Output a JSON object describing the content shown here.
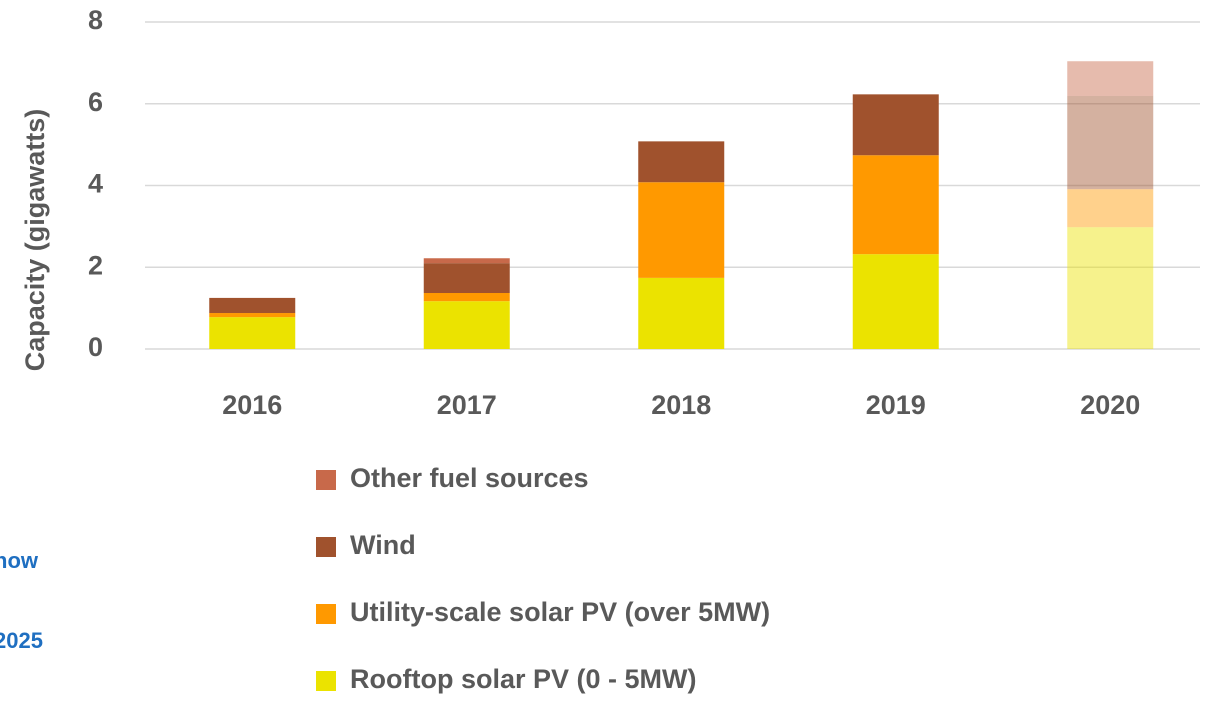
{
  "chart_data": {
    "type": "stacked_bar",
    "y_label": "Capacity (gigawatts)",
    "categories": [
      "2016",
      "2017",
      "2018",
      "2019",
      "2020"
    ],
    "series": [
      {
        "name": "Rooftop solar PV (0 - 5MW)",
        "color": "#ebe300",
        "values": [
          0.78,
          1.17,
          1.74,
          2.32,
          2.98
        ]
      },
      {
        "name": "Utility-scale solar PV (over 5MW)",
        "color": "#ff9900",
        "values": [
          0.1,
          0.2,
          2.34,
          2.42,
          0.93
        ]
      },
      {
        "name": "Wind",
        "color": "#a0522d",
        "values": [
          0.37,
          0.73,
          1.0,
          1.49,
          2.28
        ]
      },
      {
        "name": "Other fuel sources",
        "color": "#c8694a",
        "values": [
          0,
          0.12,
          0,
          0,
          0.85
        ]
      }
    ],
    "faded": [
      false,
      false,
      false,
      false,
      true
    ],
    "ylim": [
      0,
      8
    ],
    "yticks": [
      0,
      2,
      4,
      6,
      8
    ],
    "grid": true,
    "annotations": [
      "now",
      "2025"
    ]
  }
}
